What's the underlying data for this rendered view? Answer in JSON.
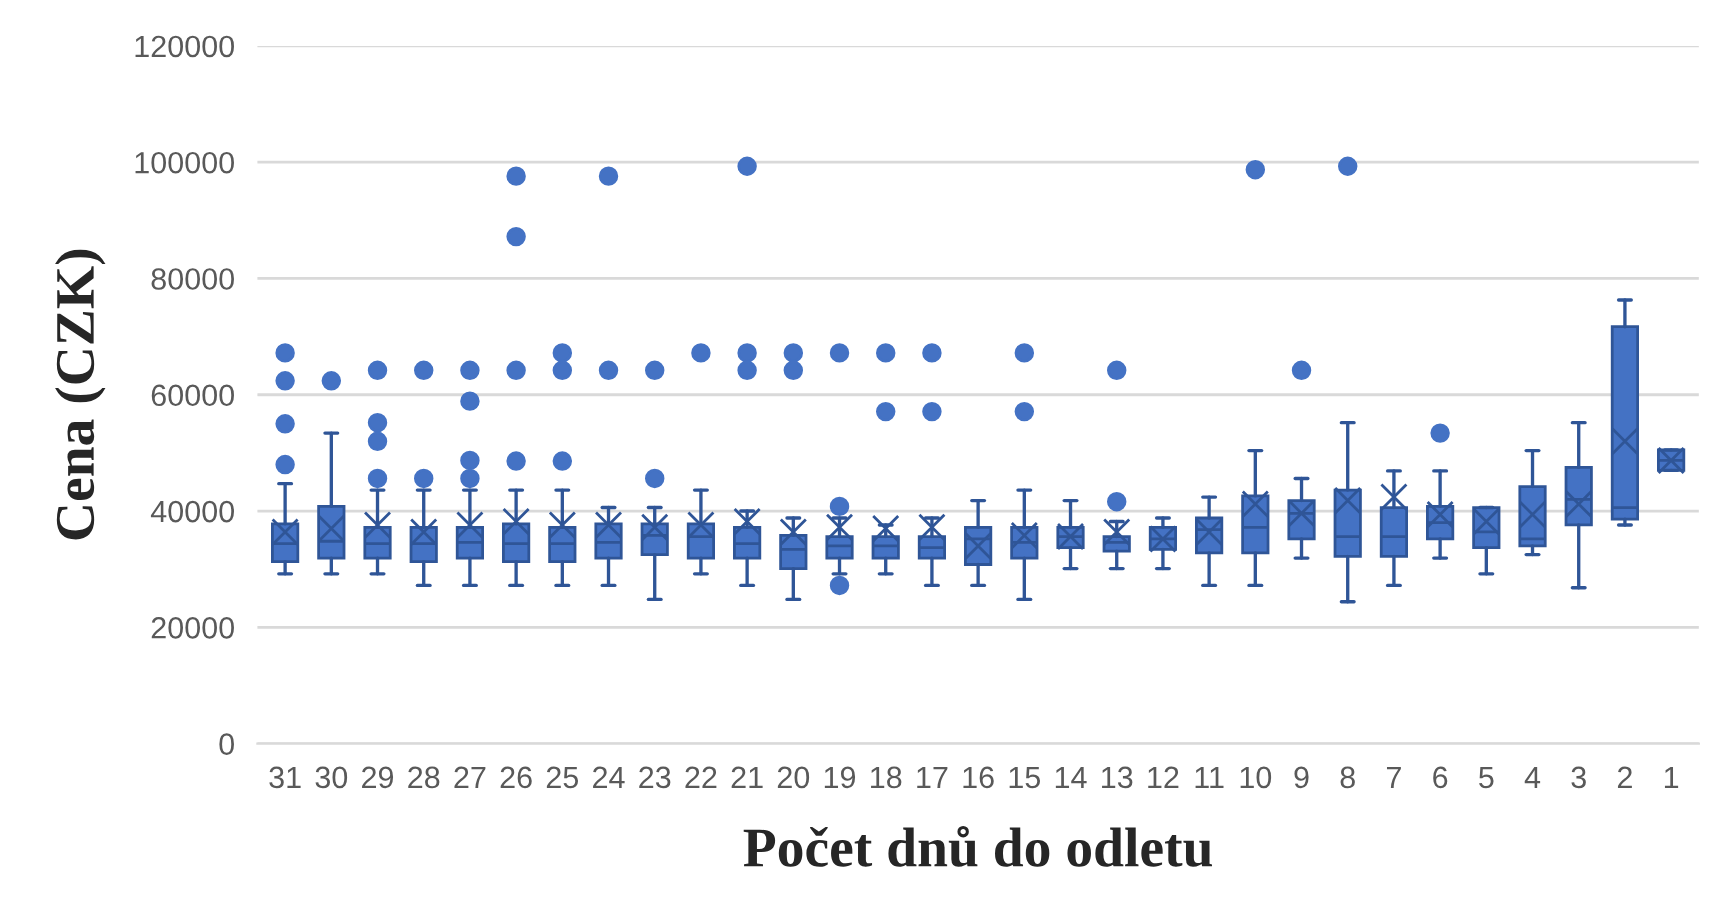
{
  "chart_data": {
    "type": "box",
    "xlabel": "Počet dnů do odletu",
    "ylabel": "Cena (CZK)",
    "categories": [
      "31",
      "30",
      "29",
      "28",
      "27",
      "26",
      "25",
      "24",
      "23",
      "22",
      "21",
      "20",
      "19",
      "18",
      "17",
      "16",
      "15",
      "14",
      "13",
      "12",
      "11",
      "10",
      "9",
      "8",
      "7",
      "6",
      "5",
      "4",
      "3",
      "2",
      "1"
    ],
    "color": "#4472c4",
    "ylim": [
      0,
      120000
    ],
    "yticks": [
      0,
      20000,
      40000,
      60000,
      80000,
      100000,
      120000
    ],
    "grid": "y",
    "boxes": [
      {
        "low": 29200,
        "q1": 31300,
        "median": 34400,
        "q3": 37800,
        "high": 44700,
        "mean": 36400,
        "outliers": [
          67200,
          62400,
          55000,
          48000
        ]
      },
      {
        "low": 29200,
        "q1": 31900,
        "median": 34800,
        "q3": 40800,
        "high": 53400,
        "mean": 37000,
        "outliers": [
          62400
        ]
      },
      {
        "low": 29200,
        "q1": 31900,
        "median": 34400,
        "q3": 37200,
        "high": 43600,
        "mean": 37600,
        "outliers": [
          64200,
          55200,
          52000,
          45600
        ]
      },
      {
        "low": 27200,
        "q1": 31300,
        "median": 34400,
        "q3": 37200,
        "high": 43600,
        "mean": 36400,
        "outliers": [
          64200,
          45600
        ]
      },
      {
        "low": 27200,
        "q1": 31900,
        "median": 34600,
        "q3": 37200,
        "high": 43600,
        "mean": 37600,
        "outliers": [
          64200,
          58900,
          48700,
          45600
        ]
      },
      {
        "low": 27200,
        "q1": 31300,
        "median": 34400,
        "q3": 37800,
        "high": 43600,
        "mean": 38200,
        "outliers": [
          97600,
          87200,
          64200,
          48600
        ]
      },
      {
        "low": 27200,
        "q1": 31300,
        "median": 34400,
        "q3": 37200,
        "high": 43600,
        "mean": 37600,
        "outliers": [
          67200,
          64200,
          48600
        ]
      },
      {
        "low": 27200,
        "q1": 31900,
        "median": 34600,
        "q3": 37800,
        "high": 40600,
        "mean": 37600,
        "outliers": [
          97600,
          64200
        ]
      },
      {
        "low": 24800,
        "q1": 32500,
        "median": 35800,
        "q3": 37800,
        "high": 40600,
        "mean": 37200,
        "outliers": [
          64200,
          45600
        ]
      },
      {
        "low": 29200,
        "q1": 31900,
        "median": 35600,
        "q3": 37800,
        "high": 43600,
        "mean": 37600,
        "outliers": [
          67200
        ]
      },
      {
        "low": 27200,
        "q1": 31900,
        "median": 34400,
        "q3": 37200,
        "high": 40000,
        "mean": 38200,
        "outliers": [
          99300,
          67200,
          64200
        ]
      },
      {
        "low": 24800,
        "q1": 30100,
        "median": 33400,
        "q3": 35800,
        "high": 38800,
        "mean": 36400,
        "outliers": [
          67200,
          64200
        ]
      },
      {
        "low": 29200,
        "q1": 31900,
        "median": 34000,
        "q3": 35600,
        "high": 38800,
        "mean": 37200,
        "outliers": [
          67200,
          40800,
          27200
        ]
      },
      {
        "low": 29200,
        "q1": 31900,
        "median": 34000,
        "q3": 35600,
        "high": 37600,
        "mean": 37000,
        "outliers": [
          67200,
          57100
        ]
      },
      {
        "low": 27200,
        "q1": 31900,
        "median": 33700,
        "q3": 35600,
        "high": 38800,
        "mean": 37200,
        "outliers": [
          67200,
          57100
        ]
      },
      {
        "low": 27200,
        "q1": 30800,
        "median": 35200,
        "q3": 37200,
        "high": 41800,
        "mean": 34000
      },
      {
        "low": 24800,
        "q1": 31900,
        "median": 34600,
        "q3": 37200,
        "high": 43600,
        "mean": 35800,
        "outliers": [
          67200,
          57100
        ]
      },
      {
        "low": 30100,
        "q1": 33700,
        "median": 35600,
        "q3": 37200,
        "high": 41800,
        "mean": 35600
      },
      {
        "low": 30100,
        "q1": 33100,
        "median": 34600,
        "q3": 35600,
        "high": 38200,
        "mean": 36400,
        "outliers": [
          64200,
          41600
        ]
      },
      {
        "low": 30100,
        "q1": 33400,
        "median": 35200,
        "q3": 37200,
        "high": 38800,
        "mean": 35200
      },
      {
        "low": 27200,
        "q1": 32800,
        "median": 36800,
        "q3": 38800,
        "high": 42400,
        "mean": 36400
      },
      {
        "low": 27200,
        "q1": 32800,
        "median": 37200,
        "q3": 42600,
        "high": 50400,
        "mean": 41200,
        "outliers": [
          98700
        ]
      },
      {
        "low": 31900,
        "q1": 35200,
        "median": 39600,
        "q3": 41800,
        "high": 45600,
        "mean": 39600,
        "outliers": [
          64200
        ]
      },
      {
        "low": 24400,
        "q1": 32200,
        "median": 35600,
        "q3": 43600,
        "high": 55200,
        "mean": 41800,
        "outliers": [
          99300
        ]
      },
      {
        "low": 27200,
        "q1": 32200,
        "median": 35600,
        "q3": 40600,
        "high": 46900,
        "mean": 42400
      },
      {
        "low": 31900,
        "q1": 35200,
        "median": 38000,
        "q3": 40800,
        "high": 46900,
        "mean": 39400,
        "outliers": [
          53400
        ]
      },
      {
        "low": 29200,
        "q1": 33700,
        "median": 36400,
        "q3": 40600,
        "high": 40600,
        "mean": 38200
      },
      {
        "low": 32500,
        "q1": 34000,
        "median": 35200,
        "q3": 44200,
        "high": 50400,
        "mean": 39400
      },
      {
        "low": 26800,
        "q1": 37600,
        "median": 42000,
        "q3": 47500,
        "high": 55200,
        "mean": 41200
      },
      {
        "low": 37600,
        "q1": 38600,
        "median": 40600,
        "q3": 71700,
        "high": 76300,
        "mean": 52000
      },
      {
        "low": 47000,
        "q1": 47000,
        "median": 48700,
        "q3": 50500,
        "high": 50500,
        "mean": 48700
      }
    ]
  }
}
